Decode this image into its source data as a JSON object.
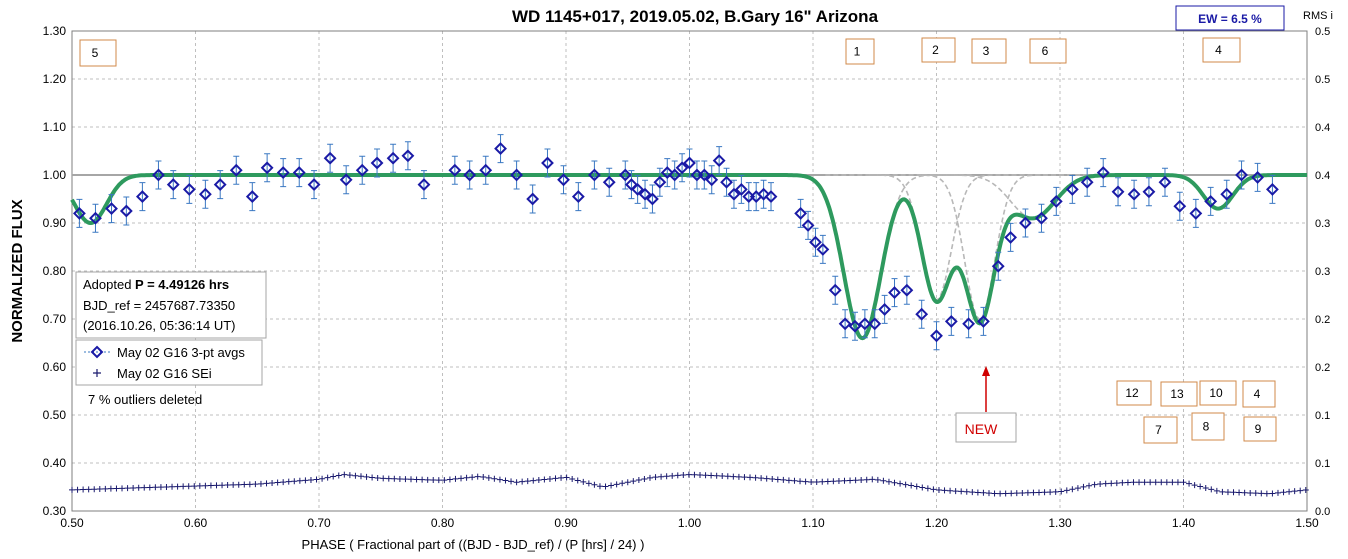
{
  "title": "WD 1145+017, 2019.05.02, B.Gary 16\" Arizona",
  "ew_label": "EW =  6.5 %",
  "rms_label": "RMS i",
  "colors": {
    "model": "#2e9a5e",
    "dip_components": "#b8b8b8",
    "reference_line": "#a6a6a6",
    "data_markers": "#1a1aa6",
    "error_bars": "#3a78c2",
    "sei": "#1a1a6e",
    "box_border": "#d08a4a",
    "arrow": "#d00000"
  },
  "info_box": {
    "line1_prefix": "Adopted ",
    "line1_bold": "P = 4.49126 hrs",
    "line2": "BJD_ref = 2457687.73350",
    "line3": "(2016.10.26, 05:36:14 UT)"
  },
  "outliers_text": "7 % outliers deleted",
  "new_label": "NEW",
  "dip_boxes_top": [
    "5",
    "1",
    "2",
    "3",
    "6",
    "4"
  ],
  "dip_boxes_bottom": [
    "12",
    "13",
    "10",
    "4",
    "7",
    "8",
    "9"
  ],
  "chart_data": {
    "type": "scatter",
    "xlabel": "PHASE ( Fractional part of ((BJD - BJD_ref) / (P [hrs] / 24) )",
    "ylabel": "NORMALIZED FLUX",
    "y2label": "RMS i",
    "xlim": [
      0.5,
      1.5
    ],
    "ylim": [
      0.3,
      1.3
    ],
    "y2lim": [
      0.0,
      0.5
    ],
    "x_ticks": [
      "0.50",
      "0.60",
      "0.70",
      "0.80",
      "0.90",
      "1.00",
      "1.10",
      "1.20",
      "1.30",
      "1.40",
      "1.50"
    ],
    "y_ticks": [
      "0.30",
      "0.40",
      "0.50",
      "0.60",
      "0.70",
      "0.80",
      "0.90",
      "1.00",
      "1.10",
      "1.20",
      "1.30"
    ],
    "y2_ticks": [
      "0.0",
      "0.1",
      "0.1",
      "0.2",
      "0.2",
      "0.3",
      "0.3",
      "0.4",
      "0.4",
      "0.5",
      "0.5"
    ],
    "grid": true,
    "legend_position": "left",
    "series": [
      {
        "name": "May 02 G16 3-pt avgs",
        "marker": "diamond",
        "points": [
          [
            0.506,
            0.92
          ],
          [
            0.519,
            0.91
          ],
          [
            0.532,
            0.93
          ],
          [
            0.544,
            0.925
          ],
          [
            0.557,
            0.955
          ],
          [
            0.57,
            1.0
          ],
          [
            0.582,
            0.98
          ],
          [
            0.595,
            0.97
          ],
          [
            0.608,
            0.96
          ],
          [
            0.62,
            0.98
          ],
          [
            0.633,
            1.01
          ],
          [
            0.646,
            0.955
          ],
          [
            0.658,
            1.015
          ],
          [
            0.671,
            1.005
          ],
          [
            0.684,
            1.005
          ],
          [
            0.696,
            0.98
          ],
          [
            0.709,
            1.035
          ],
          [
            0.722,
            0.99
          ],
          [
            0.735,
            1.01
          ],
          [
            0.747,
            1.025
          ],
          [
            0.76,
            1.035
          ],
          [
            0.772,
            1.04
          ],
          [
            0.785,
            0.98
          ],
          [
            0.81,
            1.01
          ],
          [
            0.822,
            1.0
          ],
          [
            0.835,
            1.01
          ],
          [
            0.847,
            1.055
          ],
          [
            0.86,
            1.0
          ],
          [
            0.873,
            0.95
          ],
          [
            0.885,
            1.025
          ],
          [
            0.898,
            0.99
          ],
          [
            0.91,
            0.955
          ],
          [
            0.923,
            1.0
          ],
          [
            0.935,
            0.985
          ],
          [
            0.948,
            1.0
          ],
          [
            0.953,
            0.98
          ],
          [
            0.958,
            0.97
          ],
          [
            0.964,
            0.96
          ],
          [
            0.97,
            0.95
          ],
          [
            0.976,
            0.985
          ],
          [
            0.982,
            1.005
          ],
          [
            0.988,
            1.0
          ],
          [
            0.994,
            1.015
          ],
          [
            1.0,
            1.025
          ],
          [
            1.006,
            1.0
          ],
          [
            1.012,
            1.0
          ],
          [
            1.018,
            0.99
          ],
          [
            1.024,
            1.03
          ],
          [
            1.03,
            0.985
          ],
          [
            1.036,
            0.96
          ],
          [
            1.042,
            0.97
          ],
          [
            1.048,
            0.955
          ],
          [
            1.054,
            0.955
          ],
          [
            1.06,
            0.96
          ],
          [
            1.066,
            0.955
          ],
          [
            1.09,
            0.92
          ],
          [
            1.096,
            0.895
          ],
          [
            1.102,
            0.86
          ],
          [
            1.108,
            0.845
          ],
          [
            1.118,
            0.76
          ],
          [
            1.126,
            0.69
          ],
          [
            1.134,
            0.685
          ],
          [
            1.142,
            0.69
          ],
          [
            1.15,
            0.69
          ],
          [
            1.158,
            0.72
          ],
          [
            1.166,
            0.755
          ],
          [
            1.176,
            0.76
          ],
          [
            1.188,
            0.71
          ],
          [
            1.2,
            0.665
          ],
          [
            1.212,
            0.695
          ],
          [
            1.226,
            0.69
          ],
          [
            1.238,
            0.695
          ],
          [
            1.25,
            0.81
          ],
          [
            1.26,
            0.87
          ],
          [
            1.272,
            0.9
          ],
          [
            1.285,
            0.91
          ],
          [
            1.297,
            0.945
          ],
          [
            1.31,
            0.97
          ],
          [
            1.322,
            0.985
          ],
          [
            1.335,
            1.005
          ],
          [
            1.347,
            0.965
          ],
          [
            1.36,
            0.96
          ],
          [
            1.372,
            0.965
          ],
          [
            1.385,
            0.985
          ],
          [
            1.397,
            0.935
          ],
          [
            1.41,
            0.92
          ],
          [
            1.422,
            0.945
          ],
          [
            1.435,
            0.96
          ],
          [
            1.447,
            1.0
          ],
          [
            1.46,
            0.995
          ],
          [
            1.472,
            0.97
          ]
        ]
      },
      {
        "name": "May 02 G16 SEi",
        "marker": "plus",
        "axis": "right",
        "points": [
          [
            0.5,
            0.022
          ],
          [
            0.55,
            0.024
          ],
          [
            0.6,
            0.026
          ],
          [
            0.65,
            0.028
          ],
          [
            0.7,
            0.033
          ],
          [
            0.72,
            0.038
          ],
          [
            0.75,
            0.034
          ],
          [
            0.8,
            0.032
          ],
          [
            0.83,
            0.036
          ],
          [
            0.86,
            0.03
          ],
          [
            0.9,
            0.035
          ],
          [
            0.93,
            0.025
          ],
          [
            0.95,
            0.03
          ],
          [
            0.97,
            0.035
          ],
          [
            1.0,
            0.038
          ],
          [
            1.05,
            0.035
          ],
          [
            1.1,
            0.03
          ],
          [
            1.15,
            0.033
          ],
          [
            1.2,
            0.022
          ],
          [
            1.25,
            0.018
          ],
          [
            1.3,
            0.02
          ],
          [
            1.33,
            0.028
          ],
          [
            1.36,
            0.03
          ],
          [
            1.4,
            0.03
          ],
          [
            1.43,
            0.02
          ],
          [
            1.47,
            0.018
          ],
          [
            1.5,
            0.022
          ]
        ]
      }
    ],
    "model_dips": [
      {
        "label": "5",
        "center": 0.515,
        "depth": 0.1,
        "width": 0.013
      },
      {
        "label": "1",
        "center": 1.14,
        "depth": 0.34,
        "width": 0.015
      },
      {
        "label": "2",
        "center": 1.2,
        "depth": 0.26,
        "width": 0.012
      },
      {
        "label": "3",
        "center": 1.235,
        "depth": 0.3,
        "width": 0.012
      },
      {
        "label": "6",
        "center": 1.278,
        "depth": 0.09,
        "width": 0.018
      },
      {
        "label": "4",
        "center": 1.428,
        "depth": 0.07,
        "width": 0.012
      }
    ],
    "reference_level": 1.0,
    "annotation": {
      "text": "NEW",
      "x": 1.24
    }
  }
}
